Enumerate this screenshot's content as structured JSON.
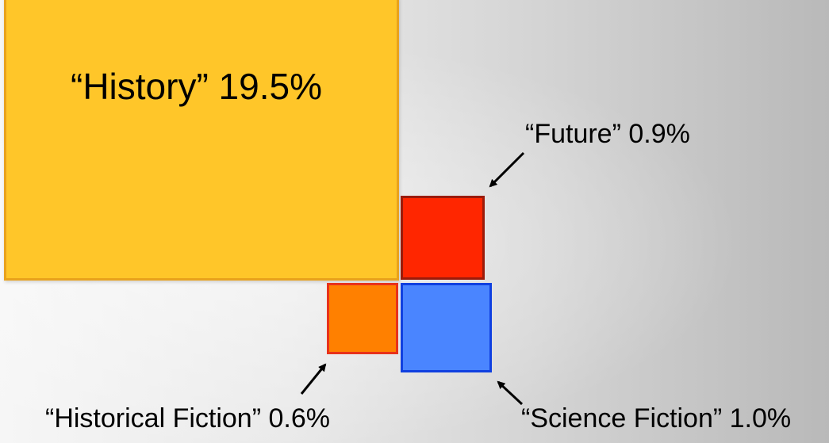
{
  "diagram": {
    "boxes": [
      {
        "id": "history",
        "label": "“History” 19.5%",
        "fill": "#ffc629",
        "border": "#e9a21c"
      },
      {
        "id": "future",
        "label": "“Future” 0.9%",
        "fill": "#ff2600",
        "border": "#9b1b0a"
      },
      {
        "id": "historical-fiction",
        "label": "“Historical Fiction” 0.6%",
        "fill": "#ff8000",
        "border": "#e8321a"
      },
      {
        "id": "science-fiction",
        "label": "“Science Fiction” 1.0%",
        "fill": "#4a85ff",
        "border": "#1040e0"
      }
    ],
    "arrow_color": "#000000"
  }
}
